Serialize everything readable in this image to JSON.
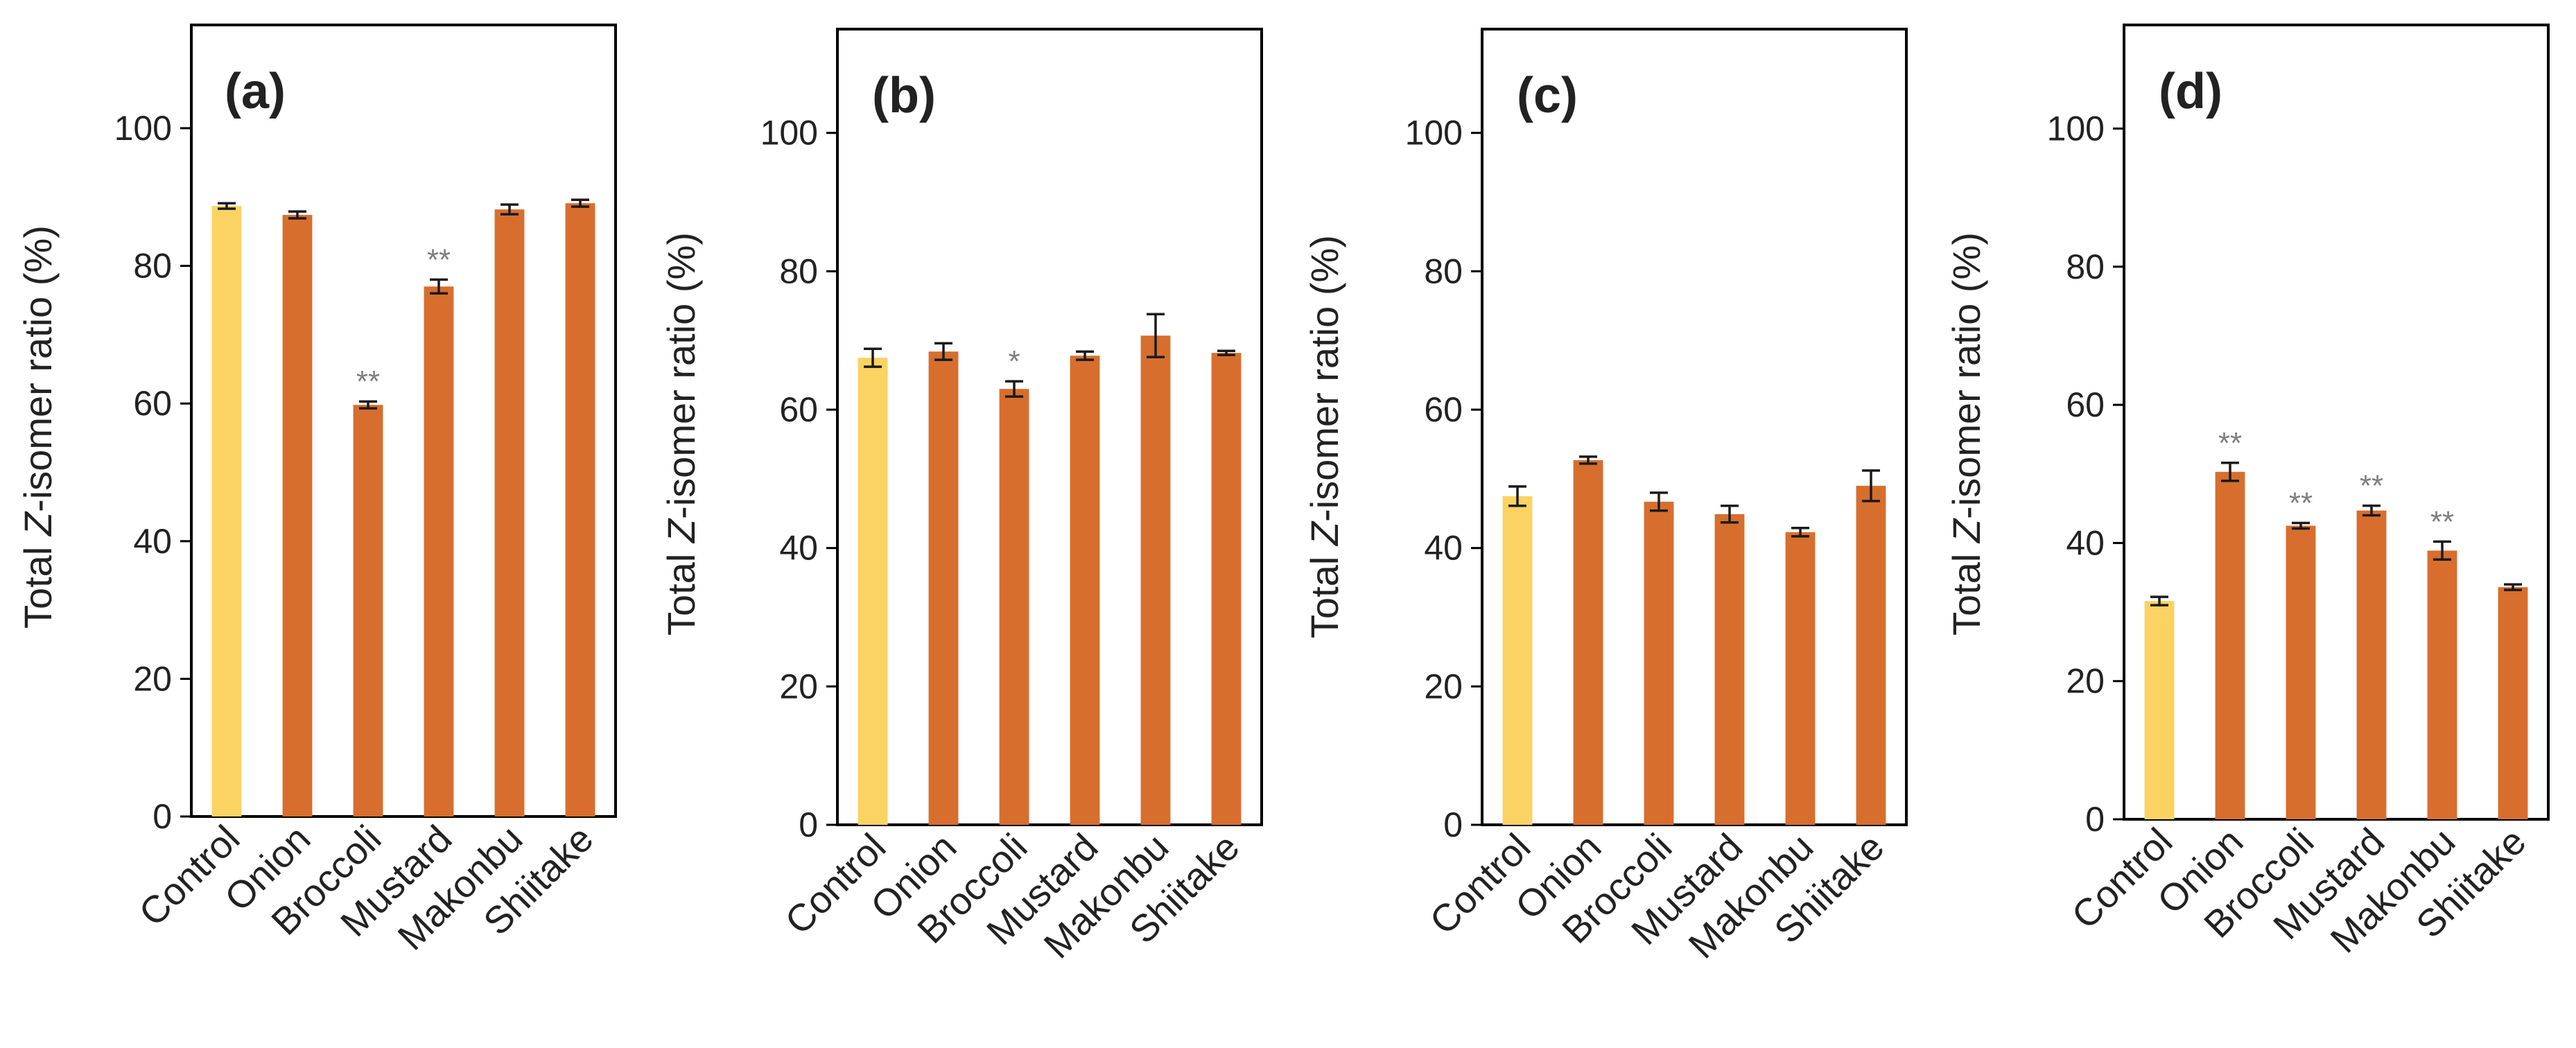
{
  "figure": {
    "panels": [
      {
        "panel_label": "(a)",
        "ylabel_prefix": "Total ",
        "ylabel_italic": "Z",
        "ylabel_suffix": "-isomer ratio (%)"
      },
      {
        "panel_label": "(b)",
        "ylabel_prefix": "Total ",
        "ylabel_italic": "Z",
        "ylabel_suffix": "-isomer ratio (%)"
      },
      {
        "panel_label": "(c)",
        "ylabel_prefix": "Total ",
        "ylabel_italic": "Z",
        "ylabel_suffix": "-isomer ratio (%)"
      },
      {
        "panel_label": "(d)",
        "ylabel_prefix": "Total ",
        "ylabel_italic": "Z",
        "ylabel_suffix": "-isomer ratio (%)"
      }
    ]
  },
  "colors": {
    "control": "#fad362",
    "treatment": "#d76e2e",
    "error": "#1a1a1a",
    "axis": "#000000",
    "significance": "#7f7f7f"
  },
  "chart_data": [
    {
      "type": "bar",
      "title": "(a)",
      "ylabel": "Total Z-isomer ratio (%)",
      "ylim": [
        0,
        115
      ],
      "yticks": [
        "0",
        "20",
        "40",
        "60",
        "80",
        "100"
      ],
      "categories": [
        "Control",
        "Onion",
        "Broccoli",
        "Mustard",
        "Makonbu",
        "Shiitake"
      ],
      "values": [
        88.7,
        87.4,
        59.8,
        77.0,
        88.2,
        89.1
      ],
      "errors": [
        0.4,
        0.5,
        0.5,
        1.0,
        0.7,
        0.5
      ],
      "significance": [
        "",
        "",
        "**",
        "**",
        "",
        ""
      ]
    },
    {
      "type": "bar",
      "title": "(b)",
      "ylabel": "Total Z-isomer ratio (%)",
      "ylim": [
        0,
        115
      ],
      "yticks": [
        "0",
        "20",
        "40",
        "60",
        "80",
        "100"
      ],
      "categories": [
        "Control",
        "Onion",
        "Broccoli",
        "Mustard",
        "Makonbu",
        "Shiitake"
      ],
      "values": [
        67.5,
        68.4,
        63.0,
        67.8,
        70.7,
        68.2
      ],
      "errors": [
        1.3,
        1.2,
        1.1,
        0.6,
        3.1,
        0.3
      ],
      "significance": [
        "",
        "",
        "*",
        "",
        "",
        ""
      ]
    },
    {
      "type": "bar",
      "title": "(c)",
      "ylabel": "Total Z-isomer ratio (%)",
      "ylim": [
        0,
        115
      ],
      "yticks": [
        "0",
        "20",
        "40",
        "60",
        "80",
        "100"
      ],
      "categories": [
        "Control",
        "Onion",
        "Broccoli",
        "Mustard",
        "Makonbu",
        "Shiitake"
      ],
      "values": [
        47.5,
        52.7,
        46.7,
        44.9,
        42.3,
        49.0
      ],
      "errors": [
        1.4,
        0.5,
        1.3,
        1.2,
        0.6,
        2.2
      ],
      "significance": [
        "",
        "",
        "",
        "",
        "",
        ""
      ]
    },
    {
      "type": "bar",
      "title": "(d)",
      "ylabel": "Total Z-isomer ratio (%)",
      "ylim": [
        0,
        115
      ],
      "yticks": [
        "0",
        "20",
        "40",
        "60",
        "80",
        "100"
      ],
      "categories": [
        "Control",
        "Onion",
        "Broccoli",
        "Mustard",
        "Makonbu",
        "Shiitake"
      ],
      "values": [
        31.6,
        50.3,
        42.5,
        44.7,
        38.9,
        33.6
      ],
      "errors": [
        0.6,
        1.3,
        0.4,
        0.7,
        1.3,
        0.4
      ],
      "significance": [
        "",
        "**",
        "**",
        "**",
        "**",
        ""
      ]
    }
  ]
}
